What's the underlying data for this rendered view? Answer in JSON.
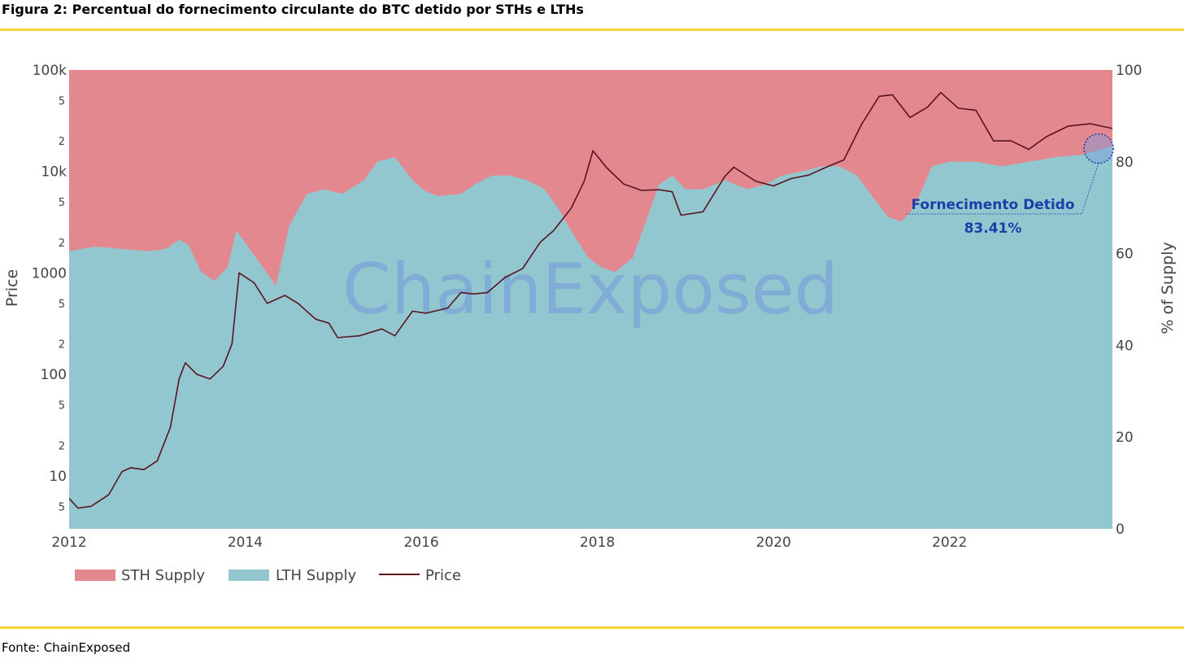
{
  "figure": {
    "title": "Figura 2: Percentual do fornecimento circulante do BTC detido por STHs e LTHs",
    "source": "Fonte: ChainExposed",
    "rule_color": "#f7d433"
  },
  "chart_data": {
    "type": "area",
    "watermark": "ChainExposed",
    "xlabel": "",
    "ylabel_left": "Price",
    "ylabel_right": "% of Supply",
    "x_ticks": [
      "2012",
      "2014",
      "2016",
      "2018",
      "2020",
      "2022"
    ],
    "x_range": [
      2012.0,
      2023.85
    ],
    "y_left": {
      "scale": "log",
      "range": [
        3,
        100000
      ],
      "major_ticks": [
        {
          "value": 10,
          "label": "10"
        },
        {
          "value": 100,
          "label": "100"
        },
        {
          "value": 1000,
          "label": "1000"
        },
        {
          "value": 10000,
          "label": "10k"
        },
        {
          "value": 100000,
          "label": "100k"
        }
      ],
      "minor_ticks": [
        {
          "value": 5,
          "label": "5"
        },
        {
          "value": 20,
          "label": "2"
        },
        {
          "value": 50,
          "label": "5"
        },
        {
          "value": 200,
          "label": "2"
        },
        {
          "value": 500,
          "label": "5"
        },
        {
          "value": 2000,
          "label": "2"
        },
        {
          "value": 5000,
          "label": "5"
        },
        {
          "value": 20000,
          "label": "2"
        },
        {
          "value": 50000,
          "label": "5"
        }
      ]
    },
    "y_right": {
      "range": [
        0,
        100
      ],
      "ticks": [
        {
          "value": 0,
          "label": "0"
        },
        {
          "value": 20,
          "label": "20"
        },
        {
          "value": 40,
          "label": "40"
        },
        {
          "value": 60,
          "label": "60"
        },
        {
          "value": 80,
          "label": "80"
        },
        {
          "value": 100,
          "label": "100"
        }
      ]
    },
    "colors": {
      "sth": "#e4888f",
      "lth": "#93c7d0",
      "price": "#5a1320",
      "annotation": "#1b3fa8"
    },
    "legend_position": "bottom-left",
    "series": [
      {
        "name": "STH Supply",
        "kind": "area",
        "note": "Fills from the LTH share up to 100% of supply"
      },
      {
        "name": "LTH Supply",
        "kind": "area",
        "x": [
          2012.0,
          2012.3,
          2012.6,
          2012.9,
          2013.1,
          2013.25,
          2013.35,
          2013.5,
          2013.65,
          2013.8,
          2013.9,
          2014.05,
          2014.2,
          2014.35,
          2014.5,
          2014.7,
          2014.9,
          2015.1,
          2015.35,
          2015.5,
          2015.7,
          2015.9,
          2016.05,
          2016.2,
          2016.45,
          2016.6,
          2016.8,
          2017.0,
          2017.2,
          2017.4,
          2017.55,
          2017.7,
          2017.9,
          2018.05,
          2018.2,
          2018.4,
          2018.55,
          2018.7,
          2018.85,
          2019.0,
          2019.2,
          2019.45,
          2019.7,
          2019.9,
          2020.1,
          2020.35,
          2020.55,
          2020.75,
          2020.95,
          2021.1,
          2021.3,
          2021.45,
          2021.6,
          2021.8,
          2022.0,
          2022.3,
          2022.6,
          2022.9,
          2023.2,
          2023.5,
          2023.85
        ],
        "values": [
          60.5,
          61.5,
          61,
          60.5,
          61,
          63,
          62,
          56,
          54,
          57,
          65,
          61,
          57,
          53,
          66,
          73,
          74,
          73,
          76,
          80,
          81,
          76,
          73.5,
          72.5,
          73,
          75,
          77,
          77,
          76,
          74,
          70,
          65,
          59,
          57,
          56,
          59,
          67,
          75,
          77,
          74,
          74,
          76,
          74,
          75,
          77,
          78,
          79,
          79,
          77,
          73,
          68,
          67,
          70,
          79,
          80,
          80,
          79,
          80,
          81,
          81.5,
          83.41
        ]
      },
      {
        "name": "Price",
        "kind": "line",
        "x": [
          2012.0,
          2012.1,
          2012.25,
          2012.45,
          2012.6,
          2012.7,
          2012.85,
          2013.0,
          2013.15,
          2013.25,
          2013.32,
          2013.45,
          2013.6,
          2013.75,
          2013.85,
          2013.93,
          2014.1,
          2014.25,
          2014.45,
          2014.6,
          2014.8,
          2014.95,
          2015.05,
          2015.3,
          2015.55,
          2015.7,
          2015.9,
          2016.05,
          2016.3,
          2016.45,
          2016.6,
          2016.75,
          2016.95,
          2017.15,
          2017.35,
          2017.5,
          2017.7,
          2017.85,
          2017.95,
          2018.1,
          2018.3,
          2018.5,
          2018.7,
          2018.85,
          2018.95,
          2019.2,
          2019.45,
          2019.55,
          2019.8,
          2020.0,
          2020.2,
          2020.4,
          2020.6,
          2020.8,
          2021.0,
          2021.2,
          2021.35,
          2021.55,
          2021.75,
          2021.9,
          2022.1,
          2022.3,
          2022.5,
          2022.7,
          2022.9,
          2023.1,
          2023.35,
          2023.6,
          2023.85
        ],
        "values": [
          6,
          4.8,
          5,
          6.5,
          11,
          12,
          11.5,
          14,
          30,
          90,
          130,
          100,
          90,
          120,
          200,
          1000,
          800,
          500,
          600,
          500,
          350,
          320,
          230,
          240,
          280,
          240,
          420,
          400,
          450,
          640,
          620,
          640,
          900,
          1100,
          2000,
          2600,
          4300,
          8000,
          16000,
          11000,
          7500,
          6500,
          6600,
          6300,
          3700,
          4000,
          9000,
          11000,
          8000,
          7200,
          8500,
          9200,
          11000,
          13000,
          29000,
          55000,
          57000,
          34000,
          43000,
          60000,
          42000,
          40000,
          20000,
          20000,
          16500,
          22000,
          28000,
          29500,
          26500
        ]
      }
    ],
    "annotation": {
      "title": "Fornecimento Detido",
      "value": "83.41%",
      "x": 2023.85,
      "y_percent": 83.41
    }
  }
}
